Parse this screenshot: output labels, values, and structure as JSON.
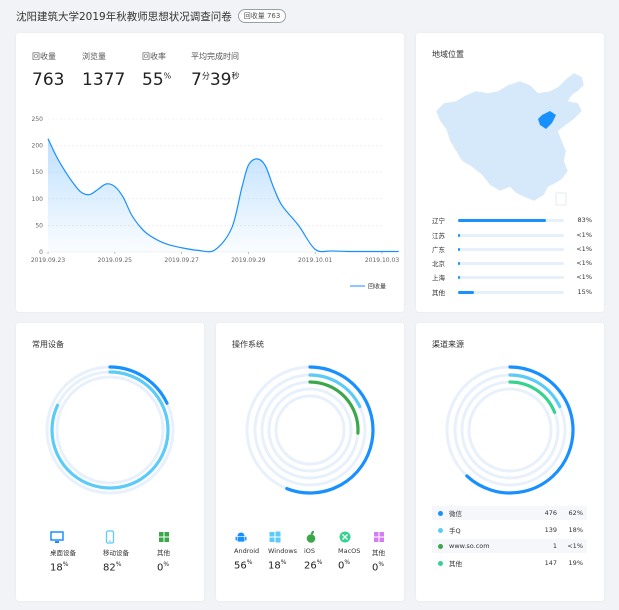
{
  "header": {
    "title": "沈阳建筑大学2019年秋教师思想状况调查问卷",
    "badge": "回收量 763"
  },
  "stats": [
    {
      "label": "回收量",
      "value": "763"
    },
    {
      "label": "浏览量",
      "value": "1377"
    },
    {
      "label": "回收率",
      "value": "55",
      "unit": "%"
    },
    {
      "label": "平均完成时间",
      "minutes": "7",
      "min_unit": "分",
      "seconds": "39",
      "sec_unit": "秒"
    }
  ],
  "chart_data": {
    "type": "line",
    "series": [
      {
        "name": "回收量",
        "color": "#1890ff"
      }
    ],
    "x_labels": [
      "2019.09.23",
      "2019.09.25",
      "2019.09.27",
      "2019.09.29",
      "2019.10.01",
      "2019.10.03"
    ],
    "y_ticks": [
      0,
      50,
      100,
      150,
      200,
      250
    ],
    "ylim": [
      0,
      250
    ],
    "legend": "回收量",
    "legend_position": "bottom-right",
    "grid": true,
    "points": [
      [
        0,
        213
      ],
      [
        0.25,
        180
      ],
      [
        0.5,
        153
      ],
      [
        0.75,
        130
      ],
      [
        1,
        112
      ],
      [
        1.25,
        108
      ],
      [
        1.5,
        118
      ],
      [
        1.75,
        128
      ],
      [
        2,
        123
      ],
      [
        2.25,
        103
      ],
      [
        2.5,
        70
      ],
      [
        2.75,
        48
      ],
      [
        3,
        33
      ],
      [
        3.5,
        16
      ],
      [
        4,
        8
      ],
      [
        4.5,
        3
      ],
      [
        5,
        4
      ],
      [
        5.5,
        45
      ],
      [
        5.8,
        120
      ],
      [
        6,
        163
      ],
      [
        6.25,
        175
      ],
      [
        6.5,
        163
      ],
      [
        6.75,
        122
      ],
      [
        7,
        88
      ],
      [
        7.5,
        50
      ],
      [
        8,
        5
      ],
      [
        8.5,
        2
      ],
      [
        9,
        1
      ],
      [
        9.5,
        1
      ],
      [
        10,
        1
      ],
      [
        10.5,
        1
      ]
    ]
  },
  "region": {
    "title": "地域位置",
    "items": [
      {
        "name": "辽宁",
        "pct": "83%",
        "fill": 0.83
      },
      {
        "name": "江苏",
        "pct": "<1%",
        "fill": 0.01
      },
      {
        "name": "广东",
        "pct": "<1%",
        "fill": 0.01
      },
      {
        "name": "北京",
        "pct": "<1%",
        "fill": 0.01
      },
      {
        "name": "上海",
        "pct": "<1%",
        "fill": 0.01
      },
      {
        "name": "其他",
        "pct": "15%",
        "fill": 0.15
      }
    ]
  },
  "devices": {
    "title": "常用设备",
    "items": [
      {
        "name": "桌面设备",
        "value": "18",
        "unit": "%",
        "icon": "desktop-icon",
        "color": "#1890ff"
      },
      {
        "name": "移动设备",
        "value": "82",
        "unit": "%",
        "icon": "mobile-icon",
        "color": "#5ccbf7"
      },
      {
        "name": "其他",
        "value": "0",
        "unit": "%",
        "icon": "grid-icon",
        "color": "#3aa84a"
      }
    ]
  },
  "os": {
    "title": "操作系统",
    "items": [
      {
        "name": "Android",
        "value": "56",
        "unit": "%",
        "icon": "android-icon",
        "color": "#1890ff"
      },
      {
        "name": "Windows",
        "value": "18",
        "unit": "%",
        "icon": "windows-icon",
        "color": "#5ccbf7"
      },
      {
        "name": "iOS",
        "value": "26",
        "unit": "%",
        "icon": "apple-icon",
        "color": "#3aa84a"
      },
      {
        "name": "MacOS",
        "value": "0",
        "unit": "%",
        "icon": "macos-icon",
        "color": "#36d28f"
      },
      {
        "name": "其他",
        "value": "0",
        "unit": "%",
        "icon": "grid-icon",
        "color": "#d47cf2"
      }
    ]
  },
  "channels": {
    "title": "渠道来源",
    "items": [
      {
        "name": "微信",
        "count": "476",
        "pct": "62%",
        "color": "#1890ff"
      },
      {
        "name": "手Q",
        "count": "139",
        "pct": "18%",
        "color": "#5ccbf7"
      },
      {
        "name": "www.so.com",
        "count": "1",
        "pct": "<1%",
        "color": "#3aa84a"
      },
      {
        "name": "其他",
        "count": "147",
        "pct": "19%",
        "color": "#36d28f"
      }
    ]
  }
}
